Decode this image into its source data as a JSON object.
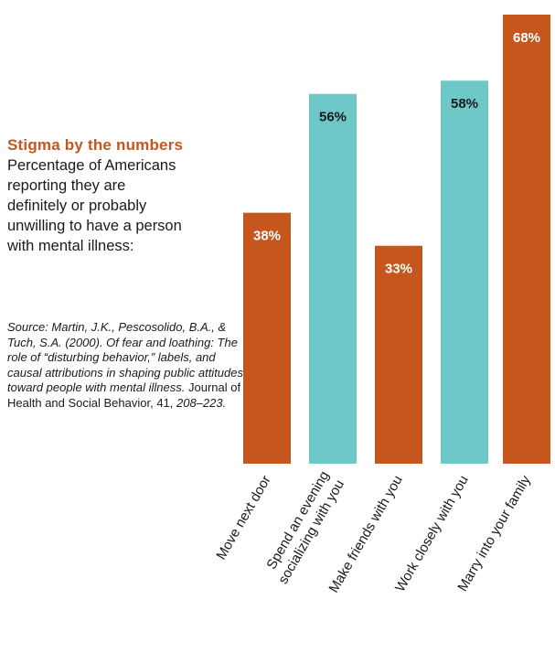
{
  "colors": {
    "orange": "#c4561e",
    "teal": "#6ec8c8",
    "heading": "#c4561e",
    "text": "#1a1a1a"
  },
  "heading": "Stigma by the numbers",
  "subtitle": "Percentage of Americans\nreporting they are\ndefinitely or probably\nunwilling to have a person\nwith mental illness:",
  "source": {
    "part1": "Source: Martin, J.K., Pescosolido, B.A., & Tuch, S.A. (2000). Of fear and loathing: The role of “disturbing behavior,” labels, and causal attributions in shaping public attitudes toward people with mental illness.",
    "part2": " Journal of Health and Social Behavior, 41, ",
    "part3": "208–223."
  },
  "chart_data": {
    "type": "bar",
    "title": "",
    "xlabel": "",
    "ylabel": "",
    "ylim": [
      0,
      68
    ],
    "categories": [
      "Move next door",
      "Spend an evening socializing with you",
      "Make friends with you",
      "Work closely with you",
      "Marry into your family"
    ],
    "category_lines": [
      [
        "Move next door"
      ],
      [
        "Spend an evening",
        "socializing with you"
      ],
      [
        "Make friends with you"
      ],
      [
        "Work closely with you"
      ],
      [
        "Marry into your family"
      ]
    ],
    "values": [
      38,
      56,
      33,
      58,
      68
    ],
    "value_labels": [
      "38%",
      "56%",
      "33%",
      "58%",
      "68%"
    ],
    "bar_colors": [
      "#c4561e",
      "#6ec8c8",
      "#c4561e",
      "#6ec8c8",
      "#c4561e"
    ],
    "label_colors": [
      "#ffffff",
      "#1a1a1a",
      "#ffffff",
      "#1a1a1a",
      "#ffffff"
    ],
    "grid": false,
    "legend": "none"
  }
}
